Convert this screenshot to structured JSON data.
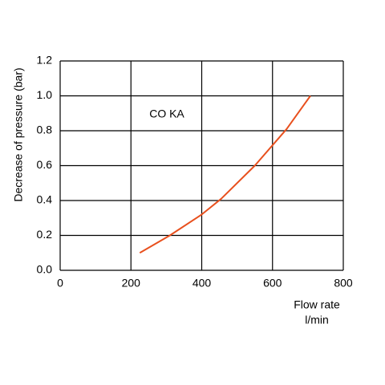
{
  "chart_data": {
    "type": "line",
    "ylabel": "Decrease of pressure (bar)",
    "xlabel": "Flow rate",
    "xunit": "l/min",
    "annotation": "CO KA",
    "x": [
      225,
      310,
      400,
      455,
      550,
      640,
      707
    ],
    "series": [
      {
        "color": "#e8501e",
        "values": [
          0.1,
          0.2,
          0.32,
          0.41,
          0.6,
          0.81,
          1.0
        ]
      }
    ],
    "xlim": [
      0,
      800
    ],
    "xticks": [
      0,
      200,
      400,
      600,
      800
    ],
    "ylim": [
      0,
      1.2
    ],
    "yticks": [
      {
        "value": 0,
        "label": "0.0"
      },
      0.2,
      0.4,
      0.6,
      0.8,
      {
        "value": 1,
        "label": "1.0"
      },
      1.2
    ],
    "grid": true
  }
}
